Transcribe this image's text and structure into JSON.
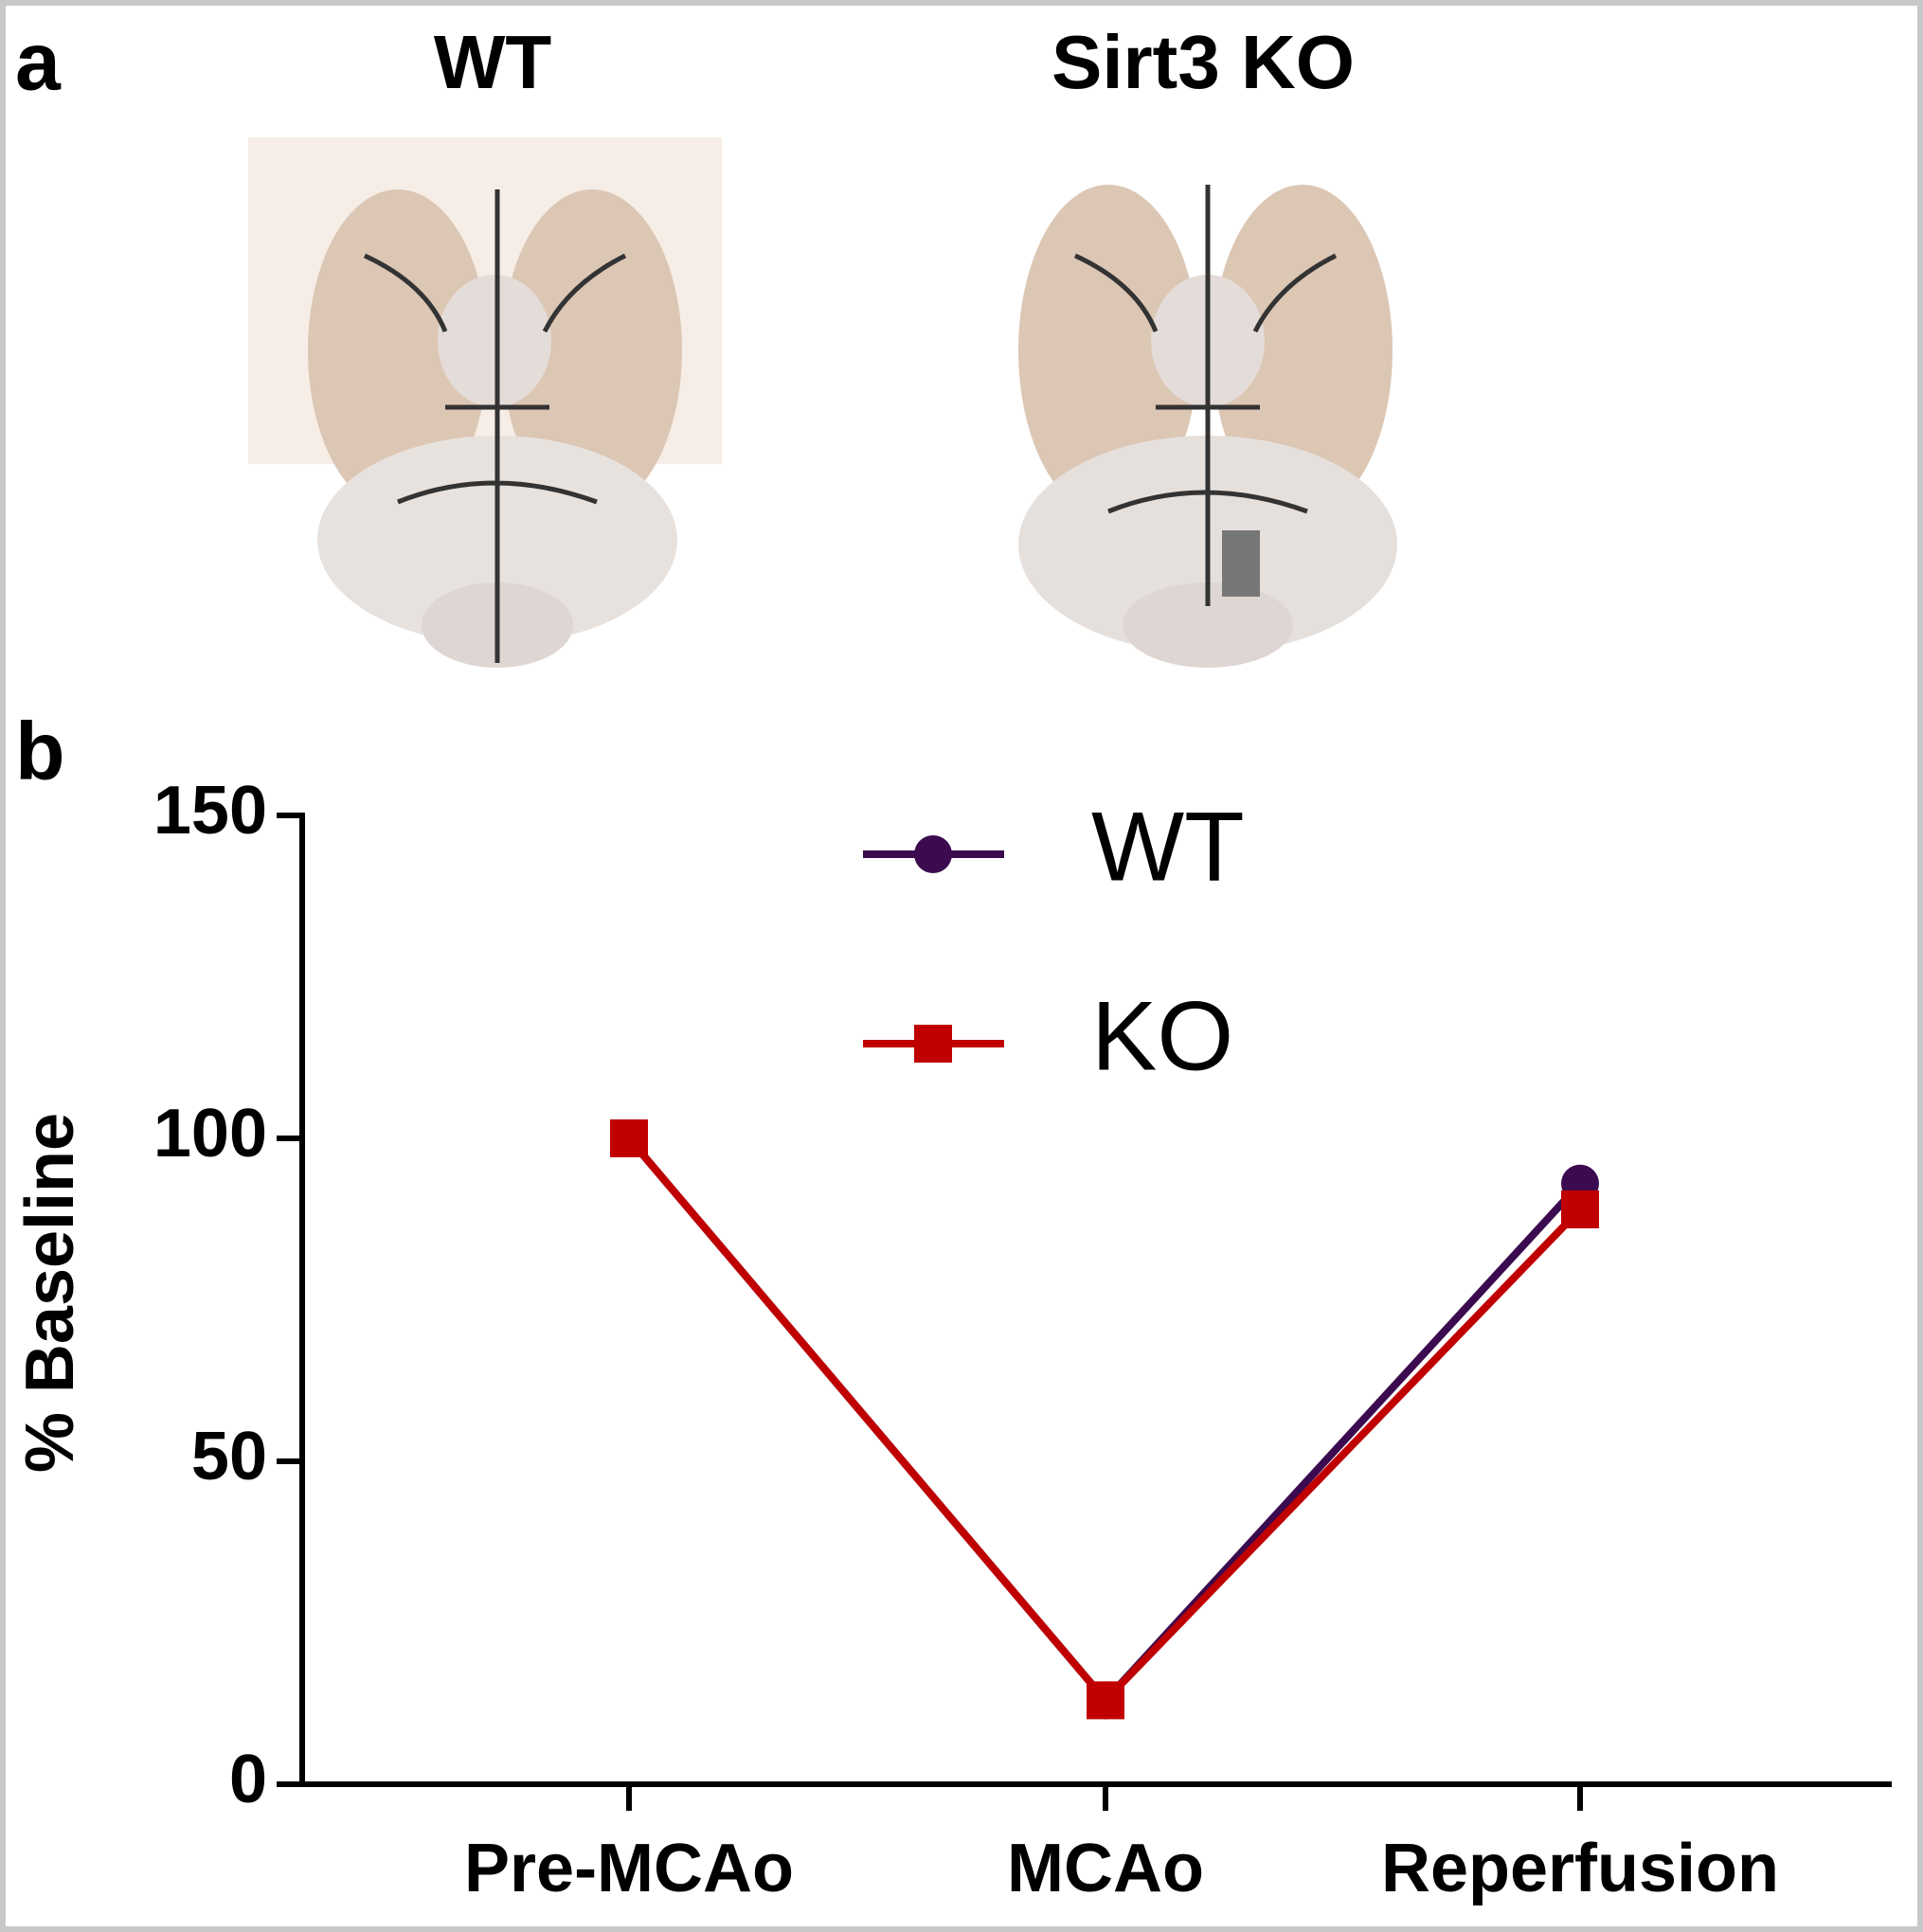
{
  "panel_a": {
    "label": "a",
    "images": [
      {
        "title": "WT"
      },
      {
        "title": "Sirt3 KO"
      }
    ]
  },
  "panel_b": {
    "label": "b"
  },
  "chart_data": {
    "type": "line",
    "y_label": "% Baseline",
    "categories": [
      "Pre-MCAo",
      "MCAo",
      "Reperfusion"
    ],
    "series": [
      {
        "name": "WT",
        "color": "#3b0a4f",
        "marker": "circle",
        "values": [
          100,
          13,
          93
        ]
      },
      {
        "name": "KO",
        "color": "#c00000",
        "marker": "square",
        "values": [
          100,
          13,
          89
        ]
      }
    ],
    "ylim": [
      0,
      150
    ],
    "yticks": [
      0,
      50,
      100,
      150
    ]
  }
}
